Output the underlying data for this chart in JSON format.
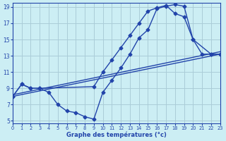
{
  "xlabel": "Graphe des températures (°c)",
  "bg_color": "#cceef4",
  "grid_color": "#aaccd8",
  "line_color": "#2244aa",
  "xmin": 0,
  "xmax": 23,
  "ymin": 5,
  "ymax": 19,
  "yticks": [
    5,
    7,
    9,
    11,
    13,
    15,
    17,
    19
  ],
  "xticks": [
    0,
    1,
    2,
    3,
    4,
    5,
    6,
    7,
    8,
    9,
    10,
    11,
    12,
    13,
    14,
    15,
    16,
    17,
    18,
    19,
    20,
    21,
    22,
    23
  ],
  "line1_x": [
    0,
    1,
    2,
    3,
    4,
    5,
    6,
    7,
    8,
    9,
    10,
    11,
    12,
    13,
    14,
    15,
    16,
    17,
    18,
    19,
    20,
    21,
    22,
    23
  ],
  "line1_y": [
    8.0,
    9.5,
    9.0,
    9.0,
    8.5,
    7.0,
    6.2,
    6.0,
    5.5,
    5.2,
    8.5,
    10.0,
    11.5,
    13.2,
    15.2,
    16.2,
    18.8,
    19.1,
    19.3,
    19.1,
    15.0,
    13.2,
    13.2,
    13.2
  ],
  "line2_x": [
    0,
    1,
    2,
    3,
    9,
    10,
    11,
    12,
    13,
    14,
    15,
    16,
    17,
    18,
    19,
    20,
    22,
    23
  ],
  "line2_y": [
    8.0,
    9.5,
    9.0,
    9.0,
    9.2,
    11.0,
    12.5,
    14.0,
    15.5,
    17.0,
    18.5,
    18.9,
    19.2,
    18.2,
    17.8,
    15.0,
    13.2,
    13.2
  ],
  "line3_x": [
    0,
    23
  ],
  "line3_y": [
    8.0,
    13.2
  ],
  "line4_x": [
    0,
    23
  ],
  "line4_y": [
    8.2,
    13.5
  ]
}
